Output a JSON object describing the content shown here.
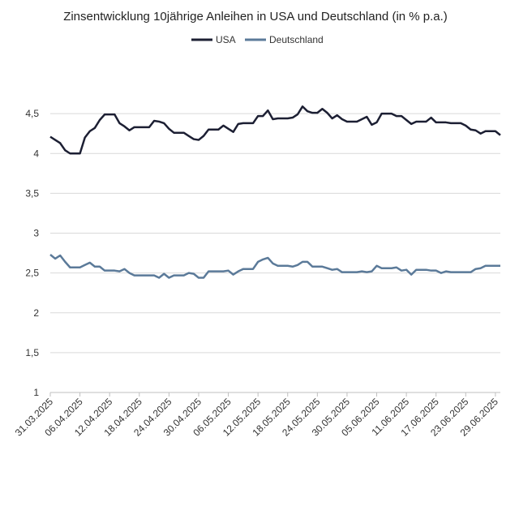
{
  "chart_data": {
    "type": "line",
    "title": "Zinsentwicklung 10jährige Anleihen in USA und Deutschland (in % p.a.)",
    "xlabel": "",
    "ylabel": "",
    "ylim": [
      1,
      5
    ],
    "y_ticks": [
      "1",
      "1,5",
      "2",
      "2,5",
      "3",
      "3,5",
      "4",
      "4,5"
    ],
    "y_tick_values": [
      1,
      1.5,
      2,
      2.5,
      3,
      3.5,
      4,
      4.5
    ],
    "x_ticks": [
      "31.03.2025",
      "06.04.2025",
      "12.04.2025",
      "18.04.2025",
      "24.04.2025",
      "30.04.2025",
      "06.05.2025",
      "12.05.2025",
      "18.05.2025",
      "24.05.2025",
      "30.05.2025",
      "05.06.2025",
      "11.06.2025",
      "17.06.2025",
      "23.06.2025",
      "29.06.2025"
    ],
    "grid": true,
    "legend_position": "top-center",
    "series": [
      {
        "name": "USA",
        "color": "#1c1f33",
        "values": [
          4.21,
          4.17,
          4.13,
          4.04,
          4.0,
          4.0,
          4.0,
          4.2,
          4.28,
          4.32,
          4.42,
          4.49,
          4.49,
          4.49,
          4.38,
          4.34,
          4.29,
          4.33,
          4.33,
          4.33,
          4.33,
          4.41,
          4.4,
          4.38,
          4.31,
          4.26,
          4.26,
          4.26,
          4.22,
          4.18,
          4.17,
          4.22,
          4.3,
          4.3,
          4.3,
          4.35,
          4.31,
          4.27,
          4.37,
          4.38,
          4.38,
          4.38,
          4.47,
          4.47,
          4.54,
          4.43,
          4.44,
          4.44,
          4.44,
          4.45,
          4.49,
          4.59,
          4.53,
          4.51,
          4.51,
          4.56,
          4.51,
          4.44,
          4.48,
          4.43,
          4.4,
          4.4,
          4.4,
          4.43,
          4.46,
          4.36,
          4.39,
          4.5,
          4.5,
          4.5,
          4.47,
          4.47,
          4.42,
          4.37,
          4.4,
          4.4,
          4.4,
          4.45,
          4.39,
          4.39,
          4.39,
          4.38,
          4.38,
          4.38,
          4.35,
          4.3,
          4.29,
          4.25,
          4.28,
          4.28,
          4.28,
          4.23
        ]
      },
      {
        "name": "Deutschland",
        "color": "#5b7a99",
        "values": [
          2.73,
          2.68,
          2.72,
          2.64,
          2.57,
          2.57,
          2.57,
          2.6,
          2.63,
          2.58,
          2.58,
          2.53,
          2.53,
          2.53,
          2.52,
          2.55,
          2.5,
          2.47,
          2.47,
          2.47,
          2.47,
          2.47,
          2.44,
          2.49,
          2.44,
          2.47,
          2.47,
          2.47,
          2.5,
          2.49,
          2.44,
          2.44,
          2.52,
          2.52,
          2.52,
          2.52,
          2.53,
          2.48,
          2.52,
          2.55,
          2.55,
          2.55,
          2.64,
          2.67,
          2.69,
          2.62,
          2.59,
          2.59,
          2.59,
          2.58,
          2.6,
          2.64,
          2.64,
          2.58,
          2.58,
          2.58,
          2.56,
          2.54,
          2.55,
          2.51,
          2.51,
          2.51,
          2.51,
          2.52,
          2.51,
          2.52,
          2.59,
          2.56,
          2.56,
          2.56,
          2.57,
          2.53,
          2.54,
          2.48,
          2.54,
          2.54,
          2.54,
          2.53,
          2.53,
          2.5,
          2.52,
          2.51,
          2.51,
          2.51,
          2.51,
          2.51,
          2.55,
          2.56,
          2.59,
          2.59,
          2.59,
          2.59
        ]
      }
    ]
  }
}
